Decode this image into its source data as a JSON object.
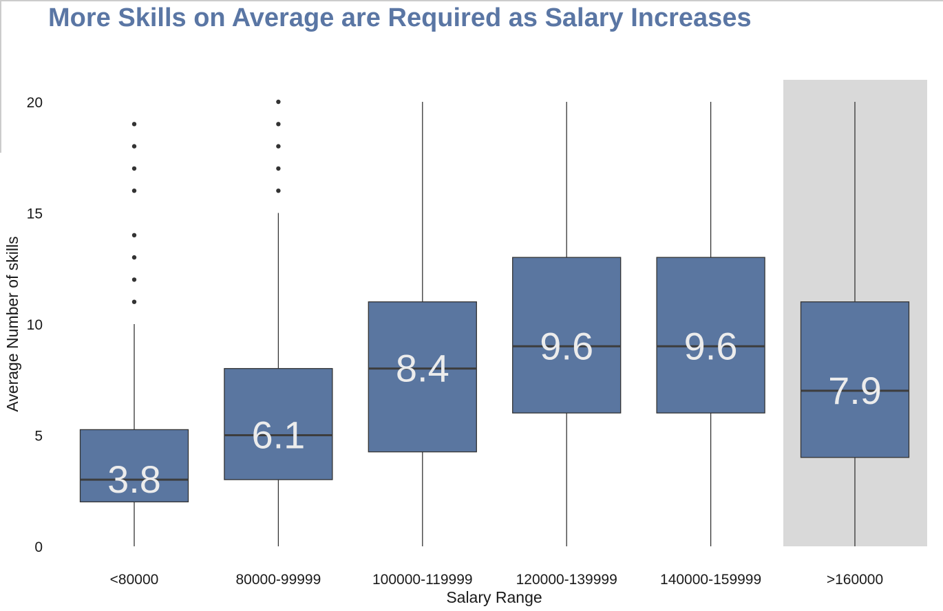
{
  "chart_data": {
    "type": "boxplot",
    "title": "More Skills on Average are Required as Salary Increases",
    "xlabel": "Salary Range",
    "ylabel": "Average Number of skills",
    "ylim": [
      0,
      20
    ],
    "yticks": [
      0,
      5,
      10,
      15,
      20
    ],
    "categories": [
      "<80000",
      "80000-99999",
      "100000-119999",
      "120000-139999",
      "140000-159999",
      ">160000"
    ],
    "boxes": [
      {
        "category": "<80000",
        "whisker_low": 0,
        "q1": 2,
        "median": 3,
        "q3": 5.25,
        "whisker_high": 10,
        "outliers": [
          11,
          12,
          13,
          14,
          16,
          17,
          18,
          19
        ],
        "label": "3.8"
      },
      {
        "category": "80000-99999",
        "whisker_low": 0,
        "q1": 3,
        "median": 5,
        "q3": 8,
        "whisker_high": 15,
        "outliers": [
          16,
          17,
          18,
          19,
          20
        ],
        "label": "6.1"
      },
      {
        "category": "100000-119999",
        "whisker_low": 0,
        "q1": 4.25,
        "median": 8,
        "q3": 11,
        "whisker_high": 20,
        "outliers": [],
        "label": "8.4"
      },
      {
        "category": "120000-139999",
        "whisker_low": 0,
        "q1": 6,
        "median": 9,
        "q3": 13,
        "whisker_high": 20,
        "outliers": [],
        "label": "9.6"
      },
      {
        "category": "140000-159999",
        "whisker_low": 0,
        "q1": 6,
        "median": 9,
        "q3": 13,
        "whisker_high": 20,
        "outliers": [],
        "label": "9.6"
      },
      {
        "category": ">160000",
        "whisker_low": 0,
        "q1": 4,
        "median": 7,
        "q3": 11,
        "whisker_high": 20,
        "outliers": [],
        "label": "7.9"
      }
    ],
    "highlighted_category": ">160000",
    "grid": false,
    "colors": {
      "title": "#5a76a4",
      "box_fill": "#5a76a0",
      "box_edge": "#333333",
      "median_line": "#3d3d3d",
      "whisker": "#333333",
      "outlier": "#333333",
      "highlight_background": "#d9d9d9",
      "data_label": "#ececec"
    }
  }
}
